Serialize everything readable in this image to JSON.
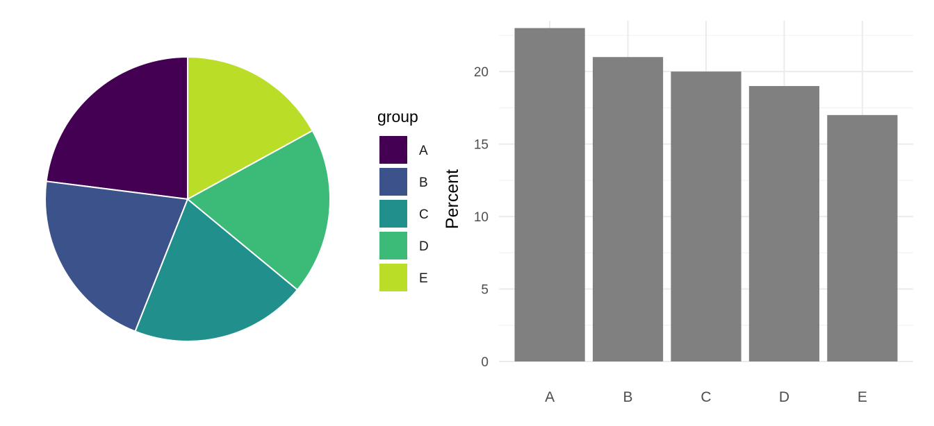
{
  "chart_data": [
    {
      "type": "pie",
      "categories": [
        "A",
        "B",
        "C",
        "D",
        "E"
      ],
      "values": [
        23,
        21,
        20,
        19,
        17
      ],
      "colors": [
        "#440154",
        "#3b528b",
        "#21908c",
        "#3bba78",
        "#bade28"
      ],
      "legend": {
        "title": "group",
        "position": "right"
      },
      "start": "12 o'clock",
      "direction": "counter-clockwise"
    },
    {
      "type": "bar",
      "categories": [
        "A",
        "B",
        "C",
        "D",
        "E"
      ],
      "values": [
        23,
        21,
        20,
        19,
        17
      ],
      "ylabel": "Percent",
      "xlabel": "",
      "ylim": [
        0,
        23.5
      ],
      "yticks": [
        0,
        5,
        10,
        15,
        20
      ],
      "bar_color": "#808080",
      "grid": true
    }
  ]
}
